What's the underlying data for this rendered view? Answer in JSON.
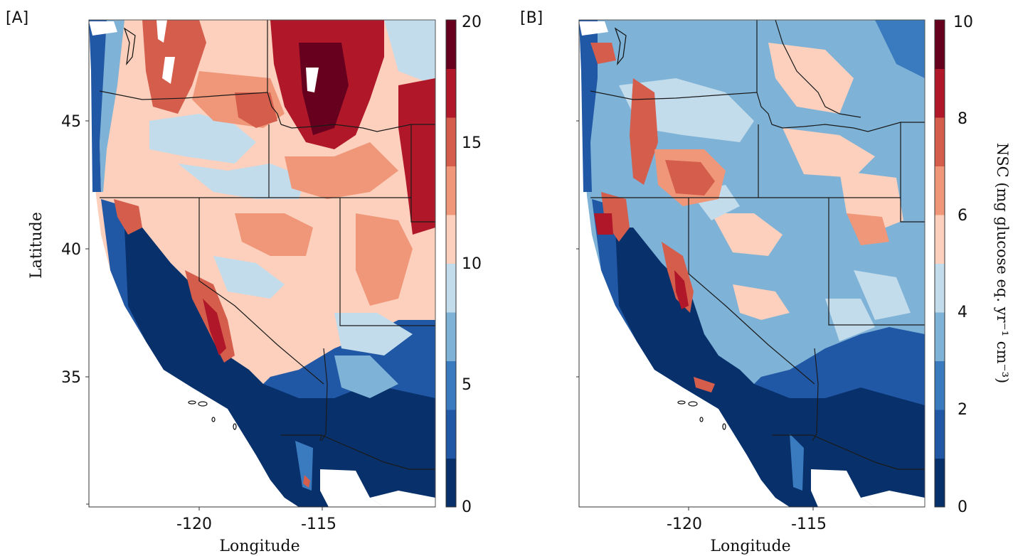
{
  "figure": {
    "panels": [
      {
        "label": "[A]",
        "xlabel": "Longitude",
        "ylabel": "Latitude",
        "x_ticks": [
          "-120",
          "-115"
        ],
        "y_ticks": [
          "45",
          "40",
          "35"
        ],
        "colorbar": {
          "min": 0,
          "max": 20,
          "steps": 10,
          "tick_labels": [
            "20",
            "15",
            "10",
            "5",
            "0"
          ],
          "title": ""
        }
      },
      {
        "label": "[B]",
        "xlabel": "Longitude",
        "ylabel": "",
        "x_ticks": [
          "-120",
          "-115"
        ],
        "y_ticks": [],
        "colorbar": {
          "min": 0,
          "max": 10,
          "steps": 10,
          "tick_labels": [
            "10",
            "8",
            "6",
            "4",
            "2",
            "0"
          ],
          "title": "NSC (mg glucose eq. yr⁻¹ cm⁻³)"
        }
      }
    ],
    "map_extent": {
      "lon_min": -124.5,
      "lon_max": -110.3,
      "lat_min": 30.0,
      "lat_max": 49.0
    },
    "colormap": [
      "#08306b",
      "#2158a6",
      "#3a7bbf",
      "#7eb2d6",
      "#c3dcec",
      "#fcd0bc",
      "#f0977a",
      "#d45d4c",
      "#b0182a",
      "#67001f"
    ]
  }
}
